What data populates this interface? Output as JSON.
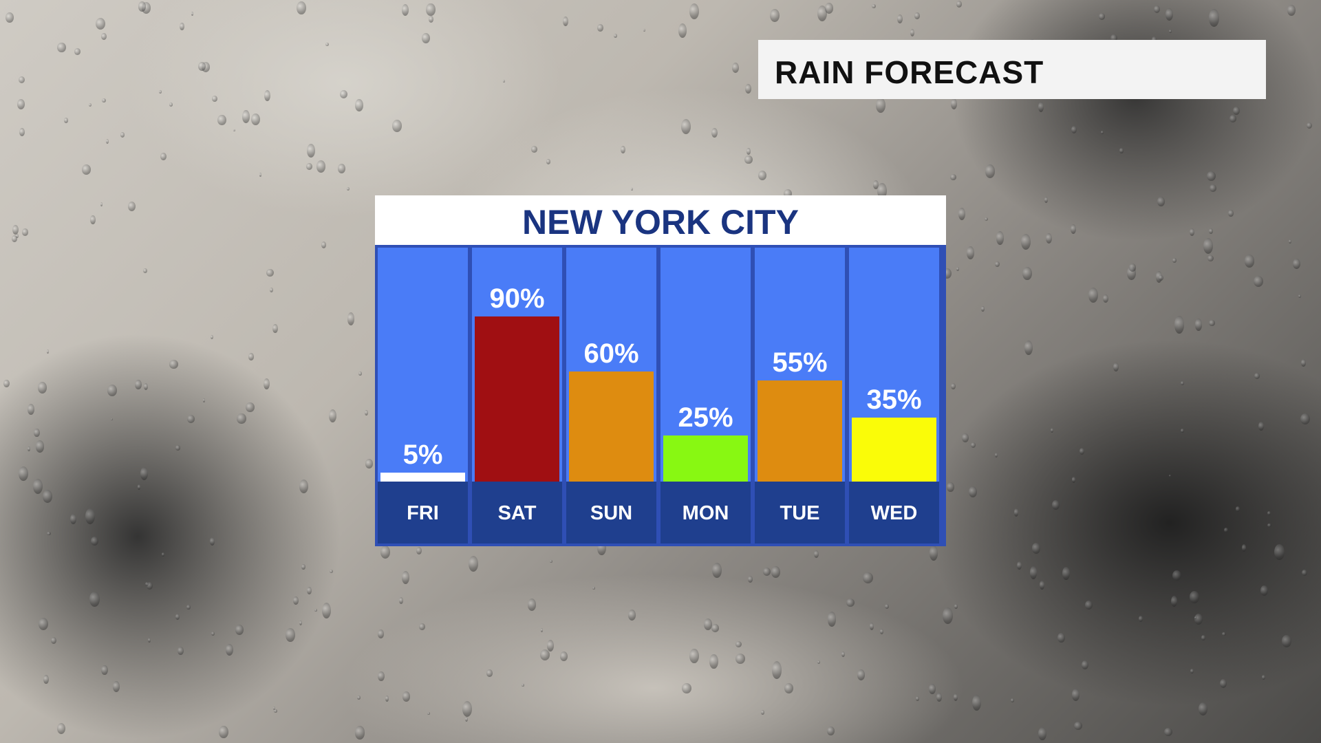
{
  "header": {
    "title": "RAIN FORECAST"
  },
  "chart_data": {
    "type": "bar",
    "title": "NEW YORK CITY",
    "categories": [
      "FRI",
      "SAT",
      "SUN",
      "MON",
      "TUE",
      "WED"
    ],
    "values": [
      5,
      90,
      60,
      25,
      55,
      35
    ],
    "value_labels": [
      "5%",
      "90%",
      "60%",
      "25%",
      "55%",
      "35%"
    ],
    "bar_colors": [
      "#ffffff",
      "#a00f12",
      "#de8c10",
      "#88f812",
      "#de8c10",
      "#fafc08"
    ],
    "ylim": [
      0,
      100
    ],
    "unit": "%"
  },
  "colors": {
    "header_text": "#1a3480",
    "column_bg": "#4a7cf7",
    "day_label_bg": "#1f3f8e"
  }
}
